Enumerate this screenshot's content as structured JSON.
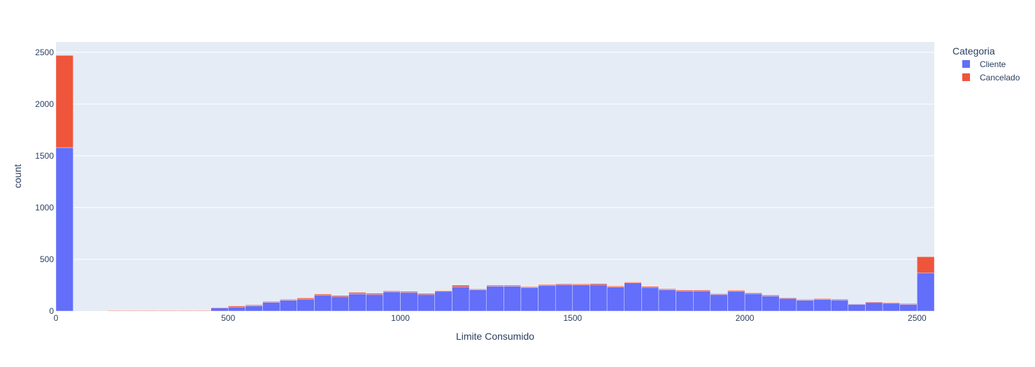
{
  "chart_data": {
    "type": "bar",
    "barmode": "stack",
    "title": "",
    "xlabel": "Limite Consumido",
    "ylabel": "count",
    "xlim": [
      0,
      2550
    ],
    "ylim": [
      0,
      2600
    ],
    "xticks": [
      0,
      500,
      1000,
      1500,
      2000,
      2500
    ],
    "yticks": [
      0,
      500,
      1000,
      1500,
      2000,
      2500
    ],
    "bin_width": 50,
    "grid": true,
    "legend": {
      "title": "Categoria",
      "position": "top-right"
    },
    "bins": [
      0,
      50,
      100,
      150,
      200,
      250,
      300,
      350,
      400,
      450,
      500,
      550,
      600,
      650,
      700,
      750,
      800,
      850,
      900,
      950,
      1000,
      1050,
      1100,
      1150,
      1200,
      1250,
      1300,
      1350,
      1400,
      1450,
      1500,
      1550,
      1600,
      1650,
      1700,
      1750,
      1800,
      1850,
      1900,
      1950,
      2000,
      2050,
      2100,
      2150,
      2200,
      2250,
      2300,
      2350,
      2400,
      2450,
      2500
    ],
    "series": [
      {
        "name": "Cliente",
        "color": "#636efa",
        "values": [
          1580,
          0,
          0,
          3,
          3,
          3,
          3,
          3,
          3,
          30,
          40,
          50,
          85,
          105,
          115,
          155,
          140,
          165,
          160,
          185,
          180,
          160,
          190,
          235,
          205,
          240,
          240,
          228,
          248,
          255,
          252,
          255,
          232,
          272,
          228,
          205,
          195,
          195,
          160,
          190,
          168,
          145,
          122,
          105,
          113,
          106,
          65,
          82,
          75,
          65,
          370
        ]
      },
      {
        "name": "Cancelado",
        "color": "#ef553b",
        "values": [
          890,
          0,
          0,
          5,
          5,
          5,
          5,
          5,
          5,
          6,
          10,
          10,
          8,
          8,
          12,
          10,
          10,
          15,
          12,
          10,
          10,
          10,
          8,
          15,
          8,
          10,
          10,
          7,
          8,
          8,
          10,
          10,
          10,
          8,
          10,
          10,
          8,
          8,
          7,
          10,
          8,
          10,
          7,
          7,
          7,
          8,
          5,
          7,
          7,
          7,
          155
        ]
      }
    ]
  }
}
